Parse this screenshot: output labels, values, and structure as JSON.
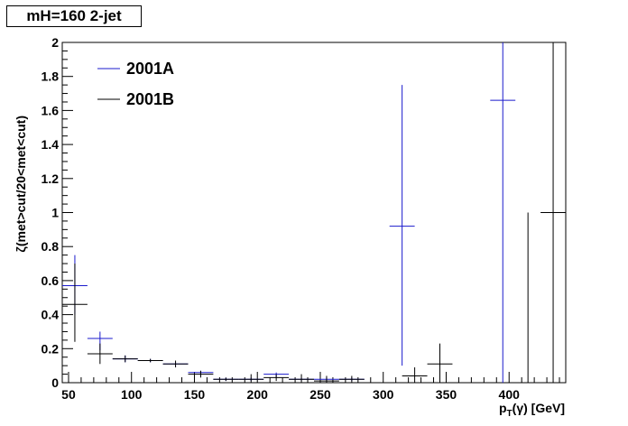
{
  "header": {
    "title": "mH=160 2-jet"
  },
  "chart_data": {
    "type": "scatter",
    "xlabel_main": "p",
    "xlabel_sub": "T",
    "xlabel_rest": "(γ) [GeV]",
    "ylabel": "ζ(met>cut/20<met<cut)",
    "xlim": [
      45,
      445
    ],
    "ylim": [
      0,
      2
    ],
    "x_ticks": [
      50,
      100,
      150,
      200,
      250,
      300,
      350,
      400
    ],
    "y_ticks": [
      0,
      0.2,
      0.4,
      0.6,
      0.8,
      1,
      1.2,
      1.4,
      1.6,
      1.8,
      2
    ],
    "y_tick_labels": [
      "0",
      "0.2",
      "0.4",
      "0.6",
      "0.8",
      "1",
      "1.2",
      "1.4",
      "1.6",
      "1.8",
      "2"
    ],
    "legend_position": "top-left",
    "grid": false,
    "series": [
      {
        "name": "2001A",
        "color": "#1a1acc",
        "points": [
          {
            "x": 55,
            "xerr": 10,
            "y": 0.57,
            "ylo": 0.4,
            "yhi": 0.75
          },
          {
            "x": 75,
            "xerr": 10,
            "y": 0.26,
            "ylo": 0.19,
            "yhi": 0.3
          },
          {
            "x": 95,
            "xerr": 10,
            "y": 0.14,
            "ylo": 0.12,
            "yhi": 0.16
          },
          {
            "x": 115,
            "xerr": 10,
            "y": 0.13,
            "ylo": 0.12,
            "yhi": 0.14
          },
          {
            "x": 135,
            "xerr": 10,
            "y": 0.11,
            "ylo": 0.09,
            "yhi": 0.12
          },
          {
            "x": 155,
            "xerr": 10,
            "y": 0.06,
            "ylo": 0.04,
            "yhi": 0.07
          },
          {
            "x": 175,
            "xerr": 10,
            "y": 0.02,
            "ylo": 0.01,
            "yhi": 0.03
          },
          {
            "x": 195,
            "xerr": 10,
            "y": 0.02,
            "ylo": 0.01,
            "yhi": 0.03
          },
          {
            "x": 215,
            "xerr": 10,
            "y": 0.05,
            "ylo": 0.03,
            "yhi": 0.06
          },
          {
            "x": 235,
            "xerr": 10,
            "y": 0.02,
            "ylo": 0.01,
            "yhi": 0.03
          },
          {
            "x": 255,
            "xerr": 10,
            "y": 0.02,
            "ylo": 0.01,
            "yhi": 0.03
          },
          {
            "x": 275,
            "xerr": 10,
            "y": 0.02,
            "ylo": 0.01,
            "yhi": 0.03
          },
          {
            "x": 315,
            "xerr": 10,
            "y": 0.92,
            "ylo": 0.1,
            "yhi": 1.75
          },
          {
            "x": 395,
            "xerr": 10,
            "y": 1.66,
            "ylo": 0.0,
            "yhi": 2.0
          }
        ]
      },
      {
        "name": "2001B",
        "color": "#000000",
        "points": [
          {
            "x": 55,
            "xerr": 10,
            "y": 0.46,
            "ylo": 0.24,
            "yhi": 0.7
          },
          {
            "x": 75,
            "xerr": 10,
            "y": 0.17,
            "ylo": 0.11,
            "yhi": 0.23
          },
          {
            "x": 95,
            "xerr": 10,
            "y": 0.14,
            "ylo": 0.12,
            "yhi": 0.16
          },
          {
            "x": 115,
            "xerr": 10,
            "y": 0.13,
            "ylo": 0.12,
            "yhi": 0.14
          },
          {
            "x": 135,
            "xerr": 10,
            "y": 0.11,
            "ylo": 0.09,
            "yhi": 0.13
          },
          {
            "x": 155,
            "xerr": 10,
            "y": 0.05,
            "ylo": 0.03,
            "yhi": 0.07
          },
          {
            "x": 175,
            "xerr": 10,
            "y": 0.02,
            "ylo": 0.01,
            "yhi": 0.03
          },
          {
            "x": 195,
            "xerr": 10,
            "y": 0.02,
            "ylo": 0.0,
            "yhi": 0.05
          },
          {
            "x": 215,
            "xerr": 10,
            "y": 0.03,
            "ylo": 0.01,
            "yhi": 0.05
          },
          {
            "x": 235,
            "xerr": 10,
            "y": 0.02,
            "ylo": 0.0,
            "yhi": 0.05
          },
          {
            "x": 255,
            "xerr": 10,
            "y": 0.01,
            "ylo": 0.0,
            "yhi": 0.04
          },
          {
            "x": 275,
            "xerr": 10,
            "y": 0.02,
            "ylo": 0.0,
            "yhi": 0.04
          },
          {
            "x": 325,
            "xerr": 10,
            "y": 0.04,
            "ylo": 0.0,
            "yhi": 0.09
          },
          {
            "x": 345,
            "xerr": 10,
            "y": 0.11,
            "ylo": 0.0,
            "yhi": 0.23
          },
          {
            "x": 415,
            "xerr": 0,
            "y": 0.0,
            "ylo": 0.0,
            "yhi": 1.0
          },
          {
            "x": 435,
            "xerr": 10,
            "y": 1.0,
            "ylo": 0.0,
            "yhi": 2.0
          }
        ]
      }
    ]
  }
}
